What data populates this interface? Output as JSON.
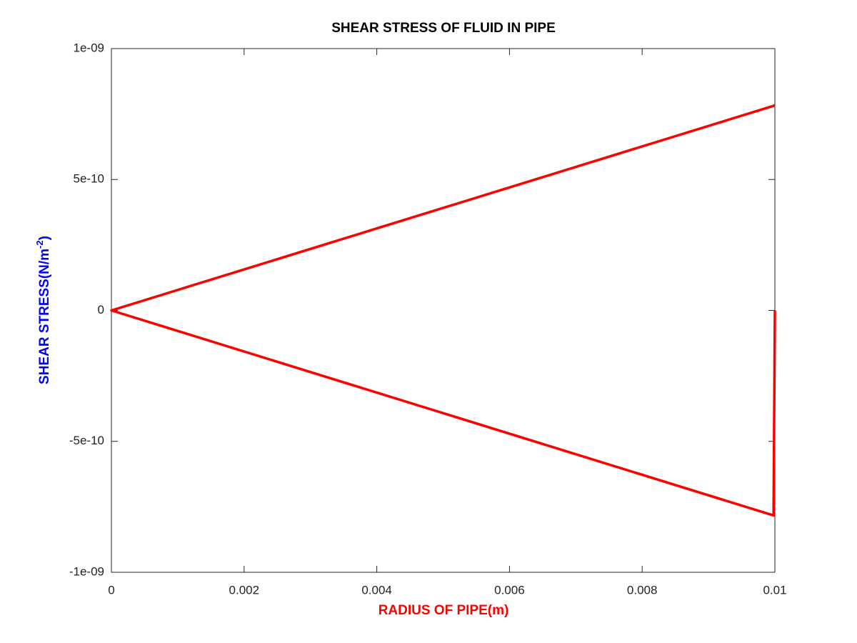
{
  "chart_data": {
    "type": "line",
    "title": "SHEAR STRESS OF FLUID IN PIPE",
    "xlabel": "RADIUS OF PIPE(m)",
    "xlabel_color": "#ff0000",
    "ylabel": [
      "SHEAR STRESS(N/m",
      "-2",
      ")"
    ],
    "ylabel_color": "#0000ff",
    "x": [
      0.01,
      0,
      0.00998,
      0.01
    ],
    "series": [
      {
        "color": "#ff0000",
        "values": [
          7.83e-10,
          0,
          -7.83e-10,
          0
        ]
      }
    ],
    "xlim": [
      0,
      0.01
    ],
    "xticks": [
      0,
      0.002,
      0.004,
      0.006,
      0.008,
      0.01
    ],
    "ylim": [
      -1e-09,
      1e-09
    ],
    "yticks": [
      {
        "value": -1e-09,
        "label": "-1e-09"
      },
      {
        "value": -5e-10,
        "label": "-5e-10"
      },
      0,
      {
        "value": 5e-10,
        "label": "5e-10"
      },
      {
        "value": 1e-09,
        "label": "1e-09"
      }
    ],
    "grid": false
  }
}
